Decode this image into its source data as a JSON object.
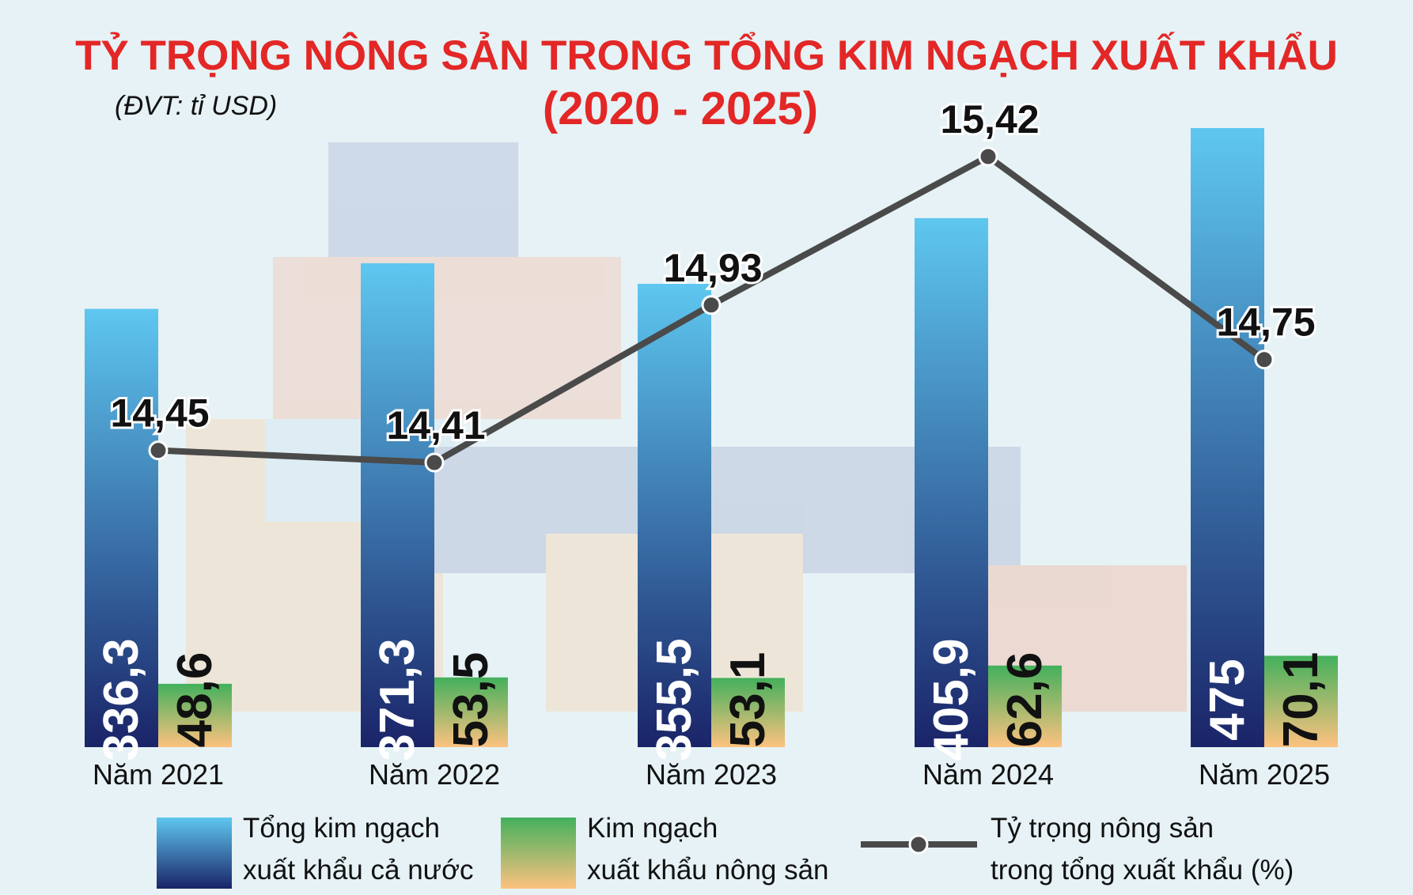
{
  "title_line1": "TỶ TRỌNG NÔNG SẢN TRONG TỔNG KIM NGẠCH XUẤT KHẨU",
  "title_line2": "(2020 - 2025)",
  "unit_label": "(ĐVT: tỉ USD)",
  "colors": {
    "title": "#e32726",
    "total_top": "#5ec7f0",
    "total_bottom": "#1a2468",
    "agri_top": "#43b05c",
    "agri_bottom": "#fdc27f",
    "line": "#4a4a4a",
    "text": "#111111"
  },
  "chart_data": {
    "type": "bar",
    "categories": [
      "Năm 2021",
      "Năm 2022",
      "Năm 2023",
      "Năm 2024",
      "Năm 2025"
    ],
    "series": [
      {
        "name": "Tổng kim ngạch xuất khẩu cả nước",
        "type": "bar",
        "values": [
          336.3,
          371.3,
          355.5,
          405.9,
          475
        ],
        "labels": [
          "336,3",
          "371,3",
          "355,5",
          "405,9",
          "475"
        ]
      },
      {
        "name": "Kim ngạch xuất khẩu nông sản",
        "type": "bar",
        "values": [
          48.6,
          53.5,
          53.1,
          62.6,
          70.1
        ],
        "labels": [
          "48,6",
          "53,5",
          "53,1",
          "62,6",
          "70,1"
        ]
      },
      {
        "name": "Tỷ trọng nông sản trong tổng xuất khẩu (%)",
        "type": "line",
        "values": [
          14.45,
          14.41,
          14.93,
          15.42,
          14.75
        ],
        "labels": [
          "14,45",
          "14,41",
          "14,93",
          "15,42",
          "14,75"
        ]
      }
    ],
    "ylim_bars": [
      0,
      475
    ],
    "ylim_line": [
      14.41,
      15.42
    ],
    "grid": false,
    "legend_position": "bottom"
  },
  "legend": [
    {
      "line1": "Tổng kim ngạch",
      "line2": "xuất khẩu cả nước",
      "kind": "total"
    },
    {
      "line1": "Kim ngạch",
      "line2": "xuất khẩu nông sản",
      "kind": "agri"
    },
    {
      "line1": "Tỷ trọng nông sản",
      "line2": "trong tổng xuất khẩu (%)",
      "kind": "line"
    }
  ]
}
